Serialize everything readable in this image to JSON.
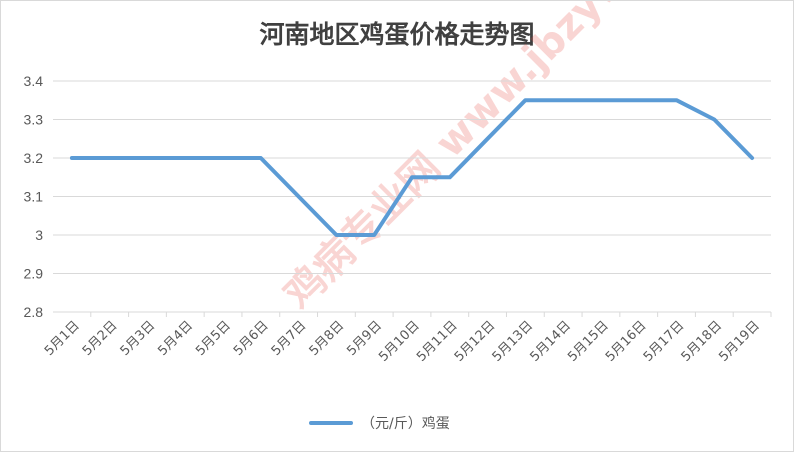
{
  "chart_data": {
    "type": "line",
    "title": "河南地区鸡蛋价格走势图",
    "categories": [
      "5月1日",
      "5月2日",
      "5月3日",
      "5月4日",
      "5月5日",
      "5月6日",
      "5月7日",
      "5月8日",
      "5月9日",
      "5月10日",
      "5月11日",
      "5月12日",
      "5月13日",
      "5月14日",
      "5月15日",
      "5月16日",
      "5月17日",
      "5月18日",
      "5月19日"
    ],
    "series": [
      {
        "name": "（元/斤）鸡蛋",
        "values": [
          3.2,
          3.2,
          3.2,
          3.2,
          3.2,
          3.2,
          3.1,
          3.0,
          3.0,
          3.15,
          3.15,
          3.25,
          3.35,
          3.35,
          3.35,
          3.35,
          3.35,
          3.3,
          3.2
        ],
        "color": "#5b9bd5"
      }
    ],
    "ylim": [
      2.8,
      3.4
    ],
    "yticks": [
      "2.8",
      "2.9",
      "3",
      "3.1",
      "3.2",
      "3.3",
      "3.4"
    ],
    "xlabel": "",
    "ylabel": "",
    "grid": "horizontal",
    "legend_position": "bottom"
  },
  "colors": {
    "line": "#5b9bd5",
    "grid": "#d9d9d9",
    "text": "#595959",
    "title": "#404040"
  },
  "watermark": {
    "text": "鸡病专业网 www.jbzyw.com"
  }
}
